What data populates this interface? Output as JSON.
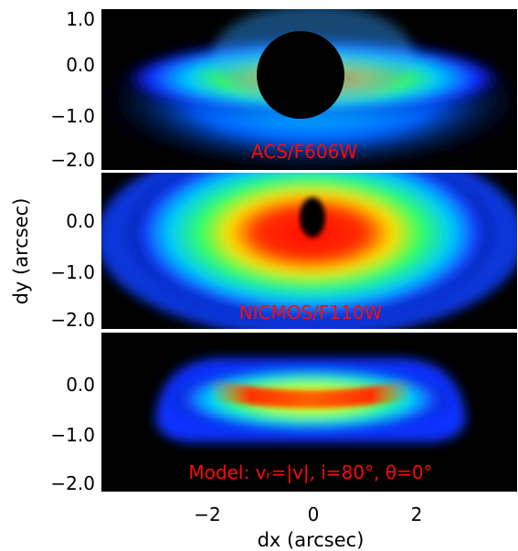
{
  "figure": {
    "panel_labels": [
      "ACS/F606W",
      "NICMOS/F110W",
      "Model: vᵣ=|v|, i=80°, θ=0°"
    ],
    "xlabel": "dx (arcsec)",
    "ylabel": "dy (arcsec)",
    "x_ticks": [
      "−2",
      "0",
      "2"
    ],
    "y_ticks_top": [
      "1.0",
      "0.0",
      "−1.0",
      "−2.0"
    ],
    "y_ticks_middle": [
      "0.0",
      "−1.0",
      "−2.0"
    ],
    "y_ticks_bottom": [
      "0.0",
      "−1.0",
      "−2.0"
    ]
  },
  "colors": {
    "background": "#000000",
    "label_red": "#ff0a0a",
    "separator": "#ffffff"
  }
}
